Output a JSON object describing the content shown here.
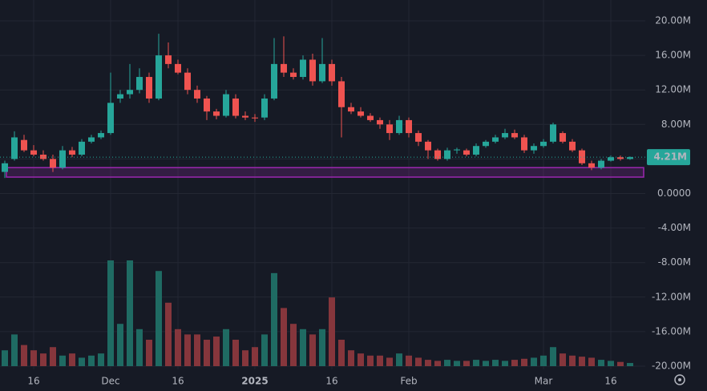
{
  "chart_data": {
    "type": "candlestick",
    "categories": [
      null,
      null,
      null,
      "16",
      null,
      null,
      null,
      null,
      null,
      null,
      null,
      "Dec",
      null,
      null,
      null,
      null,
      null,
      null,
      "16",
      null,
      null,
      null,
      null,
      null,
      null,
      null,
      "2025",
      null,
      null,
      null,
      null,
      null,
      null,
      null,
      "16",
      null,
      null,
      null,
      null,
      null,
      null,
      null,
      "Feb",
      null,
      null,
      null,
      null,
      null,
      null,
      null,
      null,
      null,
      null,
      null,
      null,
      null,
      "Mar",
      null,
      null,
      null,
      null,
      null,
      null,
      "16",
      null,
      null
    ],
    "open": [
      2.5,
      4.0,
      6.2,
      5.0,
      4.5,
      4.0,
      3.0,
      5.0,
      4.5,
      6.0,
      6.5,
      7.0,
      11.0,
      11.5,
      12.0,
      13.5,
      11.0,
      16.0,
      15.0,
      14.0,
      12.0,
      11.0,
      9.5,
      9.0,
      11.0,
      9.0,
      8.8,
      8.8,
      11.0,
      15.0,
      14.0,
      13.5,
      15.5,
      13.0,
      15.0,
      13.0,
      10.0,
      9.5,
      9.0,
      8.5,
      8.0,
      7.0,
      8.5,
      7.0,
      6.0,
      5.0,
      4.0,
      5.0,
      5.0,
      4.5,
      5.5,
      6.0,
      6.5,
      7.0,
      6.5,
      5.0,
      5.5,
      6.0,
      7.0,
      6.0,
      5.0,
      3.5,
      3.0,
      3.8,
      4.2,
      4.0
    ],
    "high": [
      3.8,
      7.2,
      6.8,
      5.6,
      5.0,
      4.5,
      5.5,
      5.4,
      6.3,
      6.8,
      7.3,
      14.0,
      12.0,
      15.0,
      14.5,
      14.0,
      18.5,
      17.5,
      15.5,
      14.5,
      12.5,
      11.3,
      9.8,
      12.0,
      11.5,
      9.5,
      9.2,
      11.5,
      18.0,
      18.2,
      14.5,
      16.0,
      16.2,
      18.0,
      15.5,
      13.5,
      10.5,
      10.0,
      9.3,
      8.8,
      8.5,
      9.0,
      8.8,
      7.3,
      6.2,
      5.2,
      5.3,
      5.3,
      5.2,
      5.8,
      6.2,
      6.8,
      7.5,
      7.4,
      6.8,
      5.8,
      6.3,
      8.2,
      7.2,
      6.3,
      5.2,
      3.8,
      4.0,
      4.4,
      4.4,
      4.3
    ],
    "low": [
      1.8,
      3.8,
      4.8,
      4.3,
      3.8,
      2.5,
      2.8,
      4.2,
      4.3,
      5.8,
      6.3,
      6.8,
      10.5,
      11.0,
      11.6,
      10.5,
      10.8,
      14.5,
      13.8,
      11.5,
      10.5,
      8.5,
      8.6,
      8.8,
      8.7,
      8.5,
      8.3,
      8.5,
      10.8,
      13.5,
      13.2,
      13.2,
      12.5,
      12.8,
      12.5,
      6.5,
      9.2,
      8.8,
      8.3,
      7.5,
      6.2,
      6.8,
      6.5,
      5.5,
      4.0,
      3.8,
      3.8,
      4.6,
      4.3,
      4.3,
      5.3,
      5.8,
      6.3,
      6.3,
      4.7,
      4.6,
      5.3,
      5.8,
      5.8,
      4.8,
      3.3,
      2.7,
      2.8,
      3.7,
      3.8,
      3.9
    ],
    "close": [
      3.5,
      6.5,
      5.0,
      4.5,
      4.0,
      3.0,
      5.0,
      4.5,
      6.0,
      6.5,
      7.0,
      10.5,
      11.5,
      12.0,
      13.5,
      11.0,
      16.0,
      15.0,
      14.0,
      12.0,
      11.0,
      9.5,
      9.0,
      11.5,
      9.0,
      8.8,
      8.7,
      11.0,
      15.0,
      14.0,
      13.5,
      15.5,
      13.0,
      15.0,
      13.0,
      10.0,
      9.5,
      9.0,
      8.5,
      8.0,
      7.0,
      8.5,
      7.0,
      6.0,
      5.0,
      4.0,
      5.0,
      5.1,
      4.5,
      5.5,
      6.0,
      6.5,
      7.0,
      6.5,
      5.0,
      5.5,
      6.0,
      8.0,
      6.0,
      5.0,
      3.5,
      3.0,
      3.8,
      4.2,
      4.0,
      4.21
    ],
    "volume": [
      15,
      30,
      20,
      15,
      12,
      18,
      10,
      12,
      8,
      10,
      12,
      100,
      40,
      100,
      35,
      25,
      90,
      60,
      35,
      30,
      30,
      25,
      28,
      35,
      25,
      15,
      18,
      30,
      88,
      55,
      40,
      35,
      30,
      35,
      65,
      25,
      15,
      12,
      10,
      10,
      8,
      12,
      10,
      8,
      6,
      5,
      6,
      5,
      5,
      6,
      5,
      6,
      5,
      6,
      7,
      8,
      10,
      18,
      12,
      10,
      9,
      8,
      6,
      5,
      4,
      3
    ],
    "up_color": "#26a69a",
    "down_color": "#ef5350",
    "up_volume_color": "#1f6b63",
    "down_volume_color": "#86363c",
    "ylim": [
      -20,
      20
    ],
    "yticks": [
      {
        "value": 20,
        "label": "20.00M"
      },
      {
        "value": 16,
        "label": "16.00M"
      },
      {
        "value": 12,
        "label": "12.00M"
      },
      {
        "value": 8,
        "label": "8.00M"
      },
      {
        "value": 4,
        "label": "4.00M"
      },
      {
        "value": 0,
        "label": "0.0000"
      },
      {
        "value": -4,
        "label": "-4.00M"
      },
      {
        "value": -8,
        "label": "-8.00M"
      },
      {
        "value": -12,
        "label": "-12.00M"
      },
      {
        "value": -16,
        "label": "-16.00M"
      },
      {
        "value": -20,
        "label": "-20.00M"
      }
    ],
    "last_price": {
      "value": 4.21,
      "label": "4.21M"
    },
    "zone": [
      1.9,
      3.0
    ],
    "zone_color": "#9c27b0",
    "grid": true
  }
}
